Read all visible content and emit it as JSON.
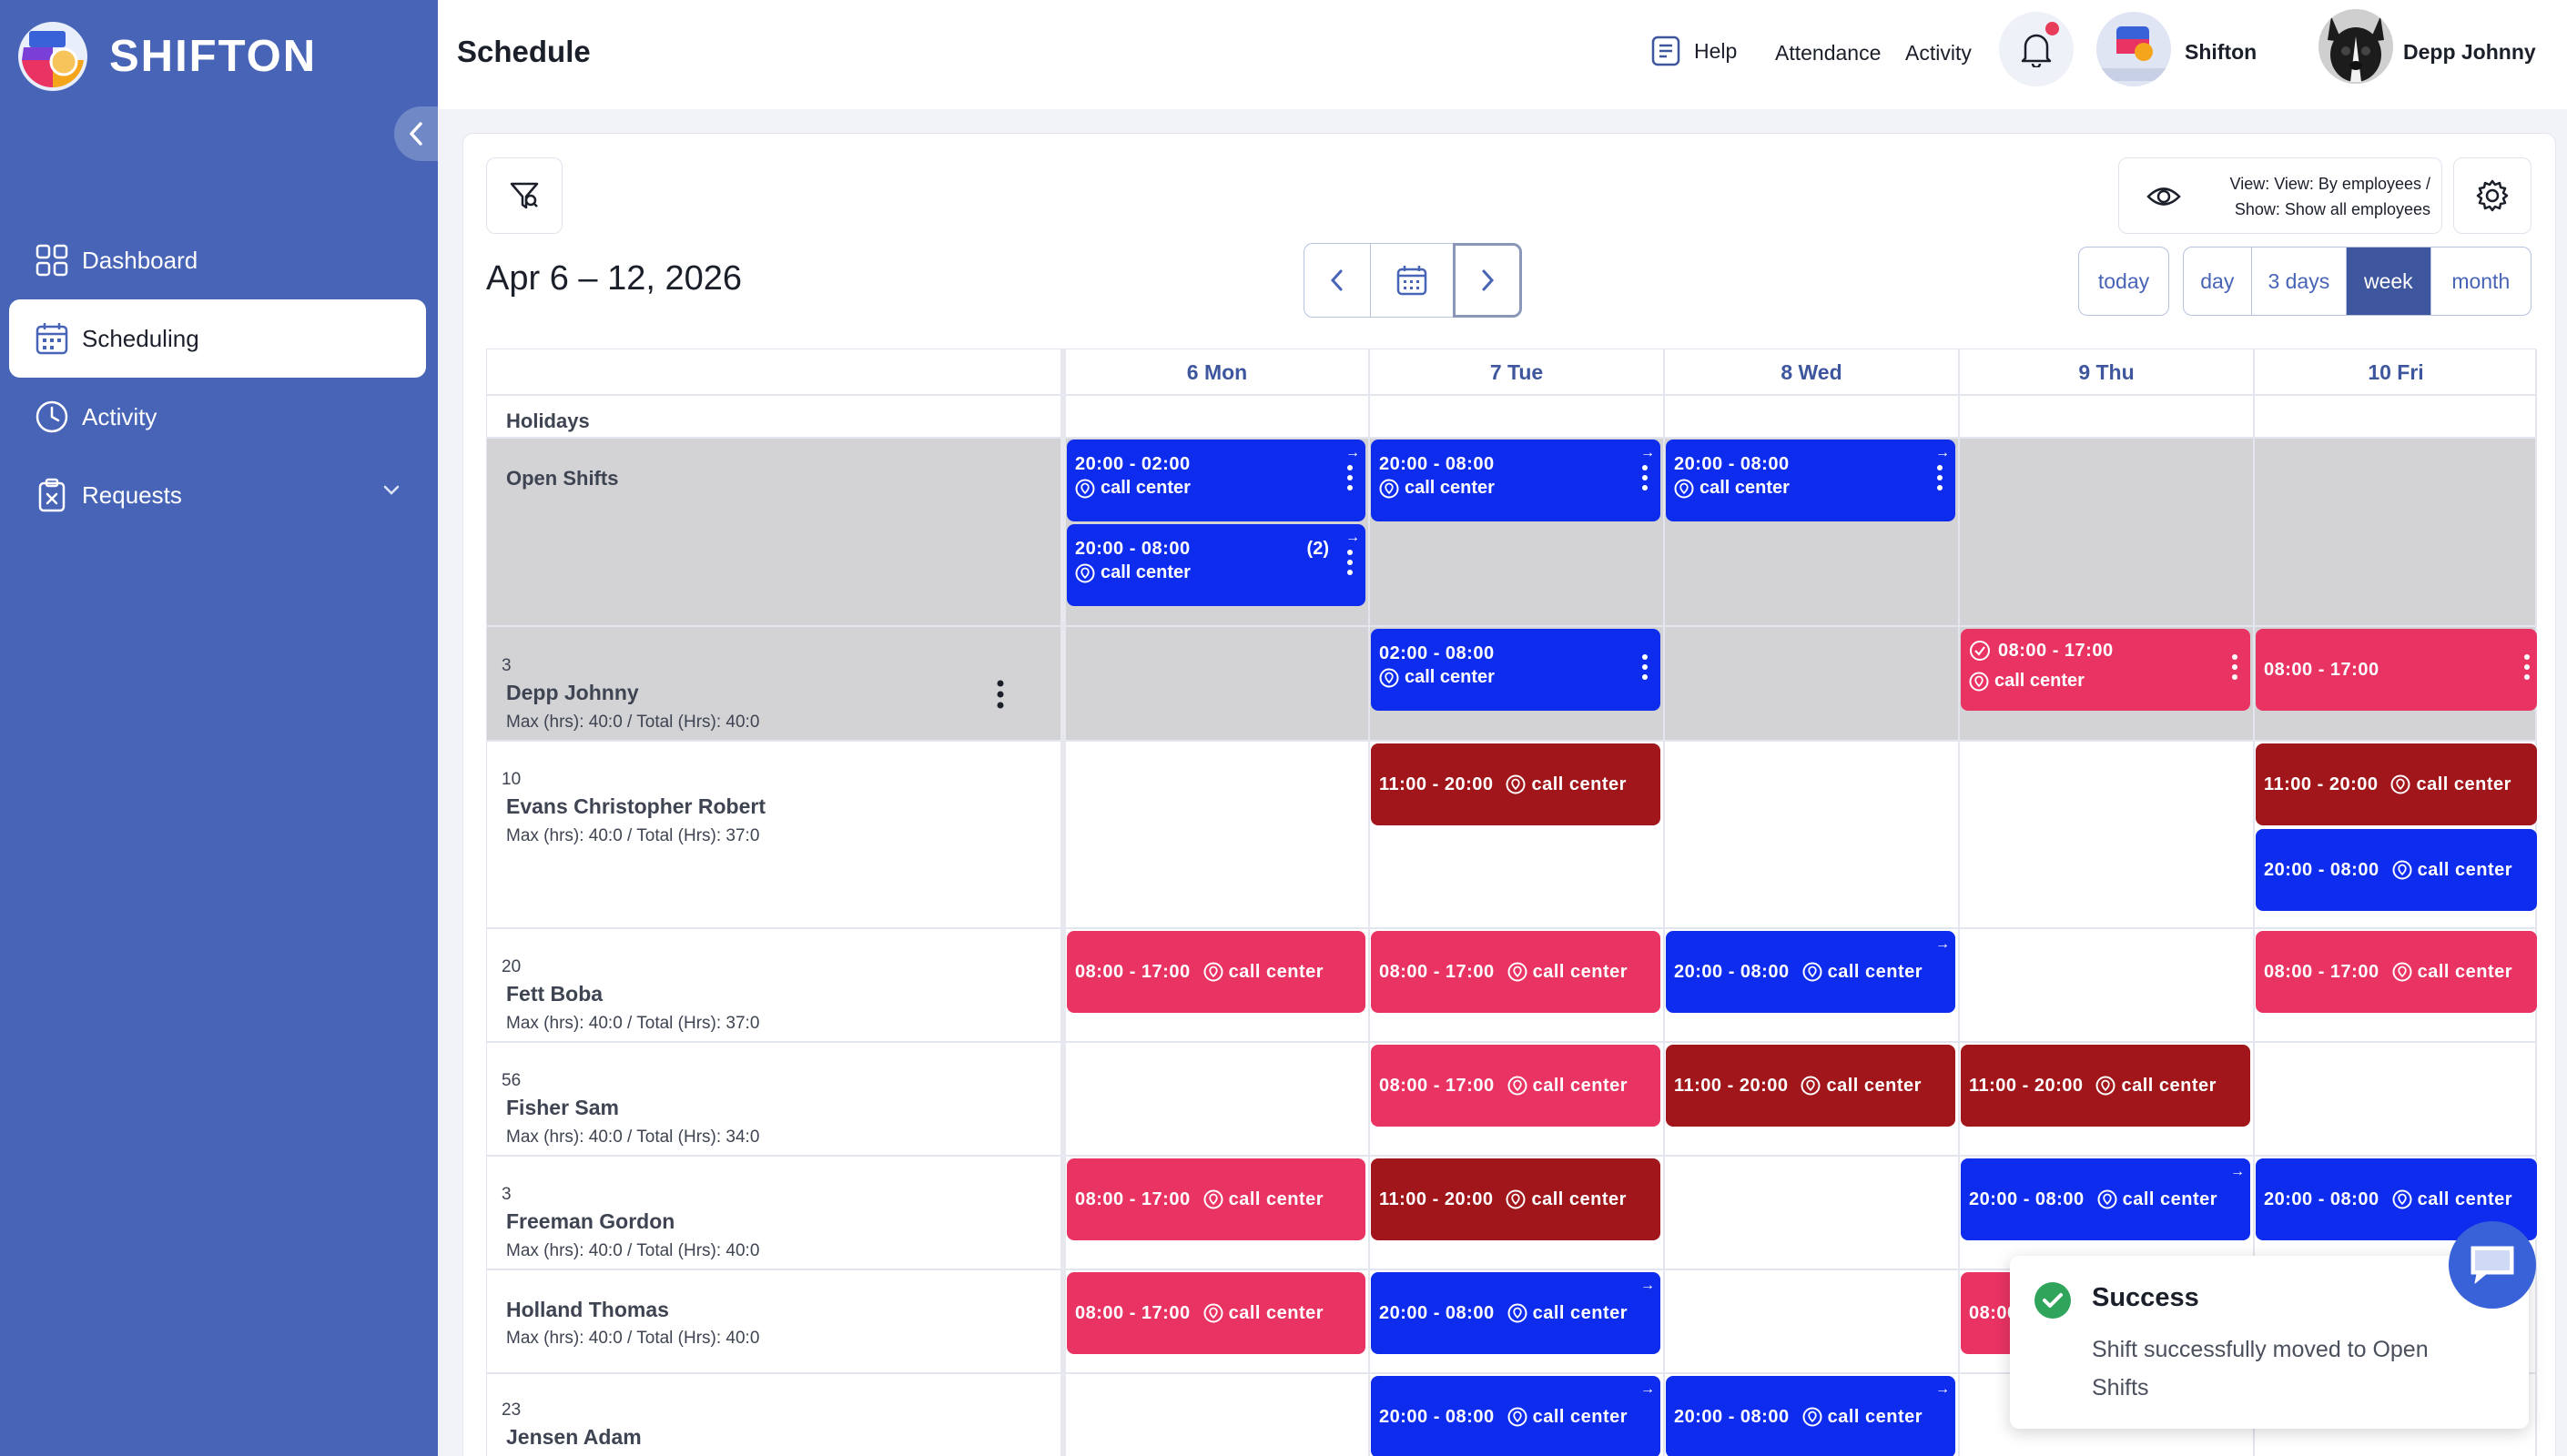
{
  "app": {
    "name": "SHIFTON",
    "page_title": "Schedule"
  },
  "sidebar": {
    "items": [
      {
        "label": "Dashboard",
        "icon": "grid-icon"
      },
      {
        "label": "Scheduling",
        "icon": "calendar-icon",
        "active": true
      },
      {
        "label": "Activity",
        "icon": "clock-icon"
      },
      {
        "label": "Requests",
        "icon": "clipboard-icon"
      }
    ]
  },
  "topbar": {
    "help": "Help",
    "attendance": "Attendance",
    "activity": "Activity",
    "company": "Shifton",
    "user": "Depp Johnny"
  },
  "toolbar": {
    "date_range": "Apr 6 – 12, 2026",
    "view_line1": "View: View: By employees /",
    "view_line2": "Show: Show all employees",
    "today": "today",
    "views": [
      "day",
      "3 days",
      "week",
      "month"
    ],
    "active_view": "week"
  },
  "days": [
    "6 Mon",
    "7 Tue",
    "8 Wed",
    "9 Thu",
    "10 Fri"
  ],
  "rows": {
    "holidays": "Holidays",
    "open_shifts": "Open Shifts"
  },
  "employees": [
    {
      "num": "3",
      "name": "Depp Johnny",
      "hours": "Max (hrs): 40:0 / Total (Hrs): 40:0"
    },
    {
      "num": "10",
      "name": "Evans Christopher Robert",
      "hours": "Max (hrs): 40:0 / Total (Hrs): 37:0"
    },
    {
      "num": "20",
      "name": "Fett Boba",
      "hours": "Max (hrs): 40:0 / Total (Hrs): 37:0"
    },
    {
      "num": "56",
      "name": "Fisher Sam",
      "hours": "Max (hrs): 40:0 / Total (Hrs): 34:0"
    },
    {
      "num": "3",
      "name": "Freeman Gordon",
      "hours": "Max (hrs): 40:0 / Total (Hrs): 40:0"
    },
    {
      "num": "",
      "name": "Holland Thomas",
      "hours": "Max (hrs): 40:0 / Total (Hrs): 40:0"
    },
    {
      "num": "23",
      "name": "Jensen Adam",
      "hours": ""
    }
  ],
  "shifts": {
    "open_mon_1": {
      "time": "20:00 - 02:00",
      "loc": "call center"
    },
    "open_mon_2": {
      "time": "20:00 - 08:00",
      "loc": "call center",
      "count": "(2)"
    },
    "open_tue": {
      "time": "20:00 - 08:00",
      "loc": "call center"
    },
    "open_wed": {
      "time": "20:00 - 08:00",
      "loc": "call center"
    },
    "depp_tue": {
      "time": "02:00 - 08:00",
      "loc": "call center"
    },
    "depp_thu": {
      "time": "08:00 - 17:00",
      "loc": "call center"
    },
    "depp_fri": {
      "time": "08:00 - 17:00"
    },
    "evans_tue": {
      "time": "11:00 - 20:00",
      "loc": "call center"
    },
    "evans_fri_1": {
      "time": "11:00 - 20:00",
      "loc": "call center"
    },
    "evans_fri_2": {
      "time": "20:00 - 08:00",
      "loc": "call center"
    },
    "fett_mon": {
      "time": "08:00 - 17:00",
      "loc": "call center"
    },
    "fett_tue": {
      "time": "08:00 - 17:00",
      "loc": "call center"
    },
    "fett_wed": {
      "time": "20:00 - 08:00",
      "loc": "call center"
    },
    "fett_fri": {
      "time": "08:00 - 17:00",
      "loc": "call center"
    },
    "fisher_tue": {
      "time": "08:00 - 17:00",
      "loc": "call center"
    },
    "fisher_wed": {
      "time": "11:00 - 20:00",
      "loc": "call center"
    },
    "fisher_thu": {
      "time": "11:00 - 20:00",
      "loc": "call center"
    },
    "freeman_mon": {
      "time": "08:00 - 17:00",
      "loc": "call center"
    },
    "freeman_tue": {
      "time": "11:00 - 20:00",
      "loc": "call center"
    },
    "freeman_thu": {
      "time": "20:00 - 08:00",
      "loc": "call center"
    },
    "freeman_fri": {
      "time": "20:00 - 08:00",
      "loc": "call center"
    },
    "holland_mon": {
      "time": "08:00 - 17:00",
      "loc": "call center"
    },
    "holland_tue": {
      "time": "20:00 - 08:00",
      "loc": "call center"
    },
    "holland_thu": {
      "time": "08:00"
    },
    "jensen_tue": {
      "time": "20:00 - 08:00",
      "loc": "call center"
    },
    "jensen_wed": {
      "time": "20:00 - 08:00",
      "loc": "call center"
    }
  },
  "toast": {
    "title": "Success",
    "message": "Shift successfully moved to Open Shifts"
  },
  "colors": {
    "sidebar": "#4864b7",
    "shift_blue": "#0d2cee",
    "shift_pink": "#e93363",
    "shift_red": "#a1161a",
    "success": "#2fa45a"
  }
}
